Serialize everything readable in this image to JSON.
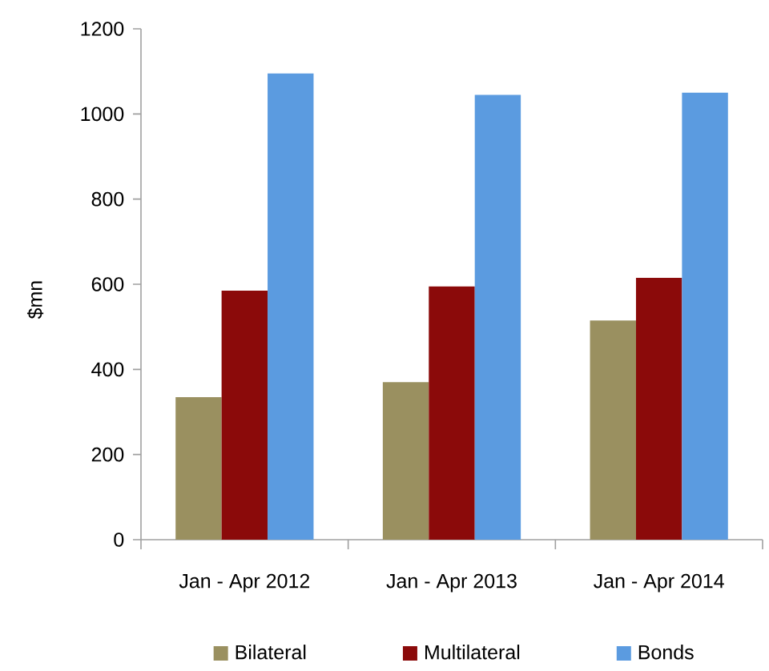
{
  "chart_data": {
    "type": "bar",
    "categories": [
      "Jan - Apr 2012",
      "Jan - Apr 2013",
      "Jan - Apr 2014"
    ],
    "ylabel": "$mn",
    "ylim": [
      0,
      1200
    ],
    "yticks": [
      0,
      200,
      400,
      600,
      800,
      1000,
      1200
    ],
    "grid": false,
    "legend": "bottom",
    "series": [
      {
        "name": "Bilateral",
        "color": "#9a9060",
        "values": [
          335,
          370,
          515
        ]
      },
      {
        "name": "Multilateral",
        "color": "#8b0a0a",
        "values": [
          585,
          595,
          615
        ]
      },
      {
        "name": "Bonds",
        "color": "#5b9be0",
        "values": [
          1095,
          1045,
          1050
        ]
      }
    ]
  }
}
